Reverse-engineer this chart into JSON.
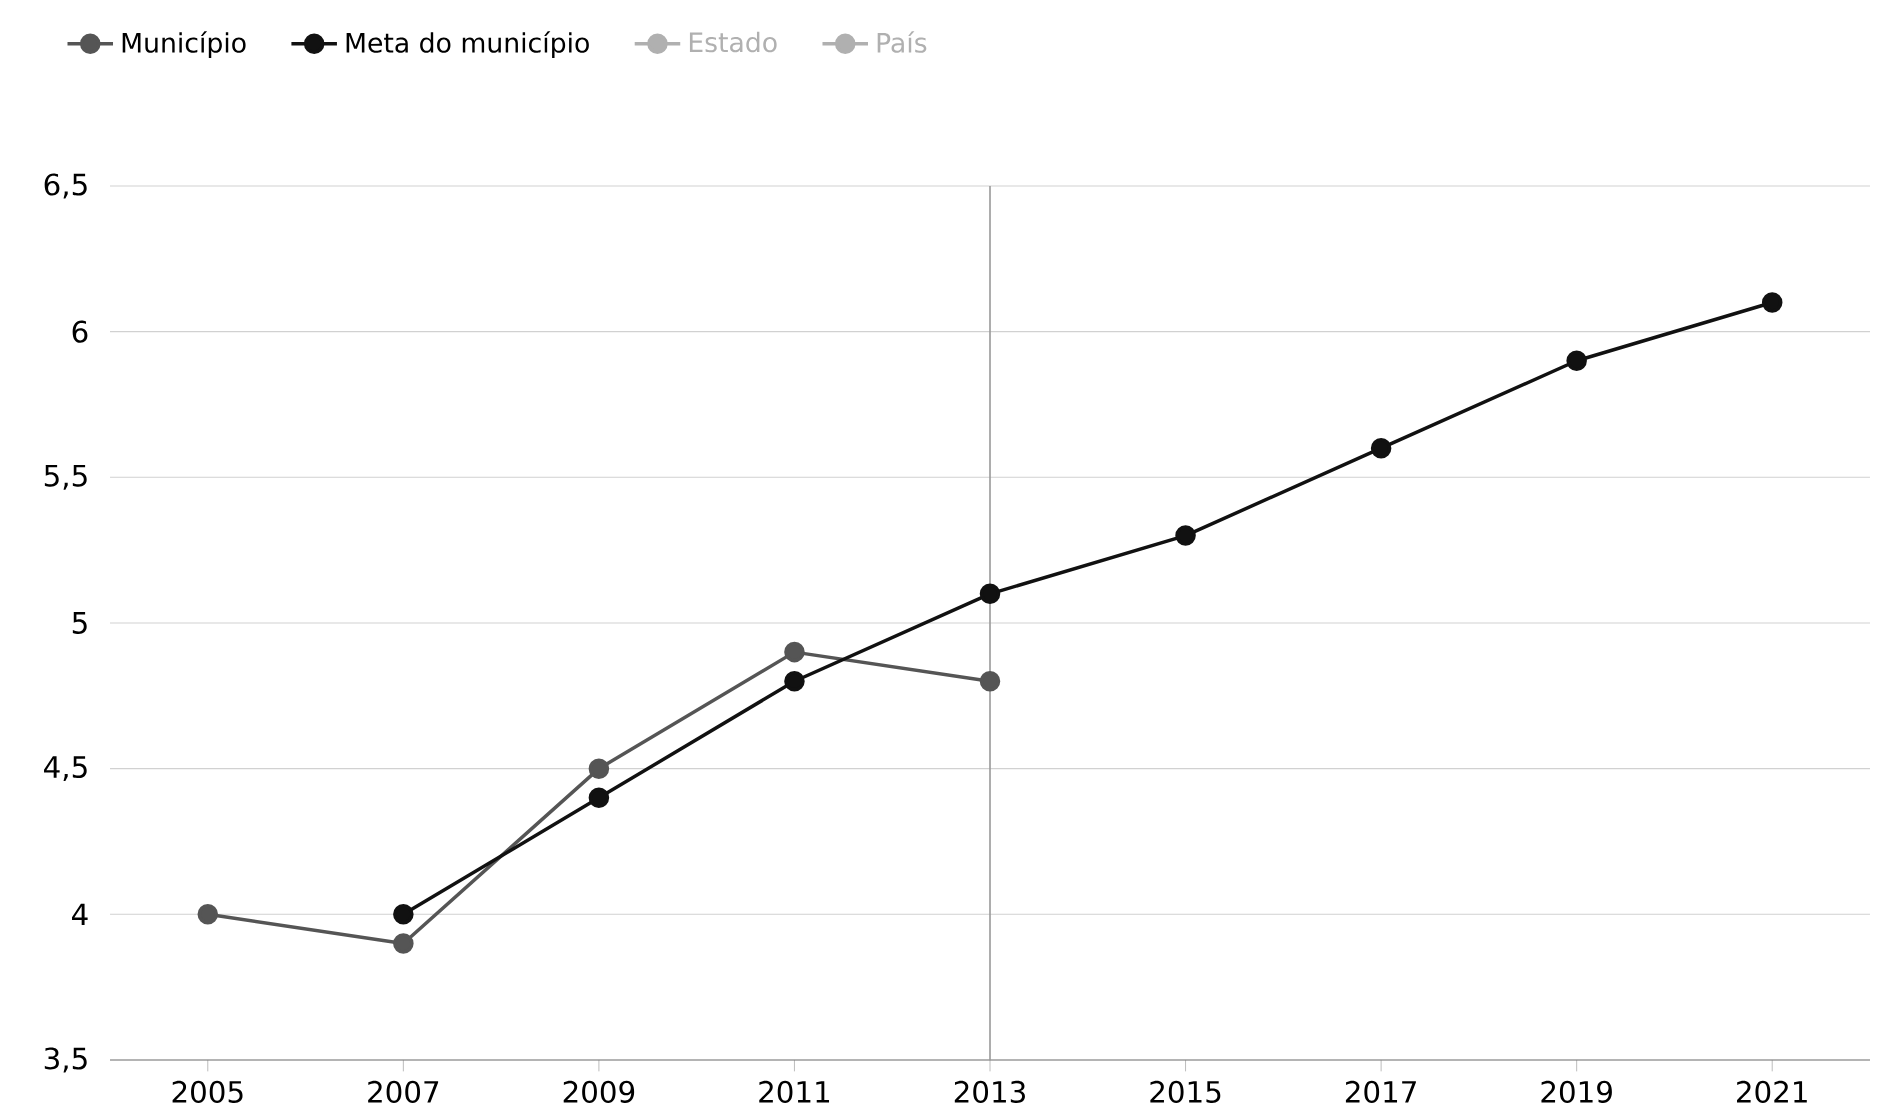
{
  "chart_data": {
    "type": "line",
    "x": [
      2005,
      2007,
      2009,
      2011,
      2013,
      2015,
      2017,
      2019,
      2021
    ],
    "series": [
      {
        "name": "Município",
        "color": "#555555",
        "values": [
          4.0,
          3.9,
          4.5,
          4.9,
          4.8,
          null,
          null,
          null,
          null
        ]
      },
      {
        "name": "Meta do município",
        "color": "#111111",
        "values": [
          null,
          4.0,
          4.4,
          4.8,
          5.1,
          5.3,
          5.6,
          5.9,
          6.1
        ]
      },
      {
        "name": "Estado",
        "color": "#b0b0b0",
        "values": [
          null,
          null,
          null,
          null,
          null,
          null,
          null,
          null,
          null
        ]
      },
      {
        "name": "País",
        "color": "#b0b0b0",
        "values": [
          null,
          null,
          null,
          null,
          null,
          null,
          null,
          null,
          null
        ]
      }
    ],
    "xlim": [
      2004,
      2022
    ],
    "xticks": [
      2005,
      2007,
      2009,
      2011,
      2013,
      2015,
      2017,
      2019,
      2021
    ],
    "ylim": [
      3.5,
      6.5
    ],
    "yticks": [
      {
        "value": 3.5,
        "label": "3,5"
      },
      4,
      {
        "value": 4.5,
        "label": "4,5"
      },
      5,
      {
        "value": 5.5,
        "label": "5,5"
      },
      6,
      {
        "value": 6.5,
        "label": "6,5"
      }
    ],
    "ref_lines": [
      {
        "axis": "x",
        "value": 2013,
        "color": "#999999"
      }
    ],
    "grid": "y",
    "legend": "top left",
    "marker": "circle",
    "line_style": "solid"
  }
}
